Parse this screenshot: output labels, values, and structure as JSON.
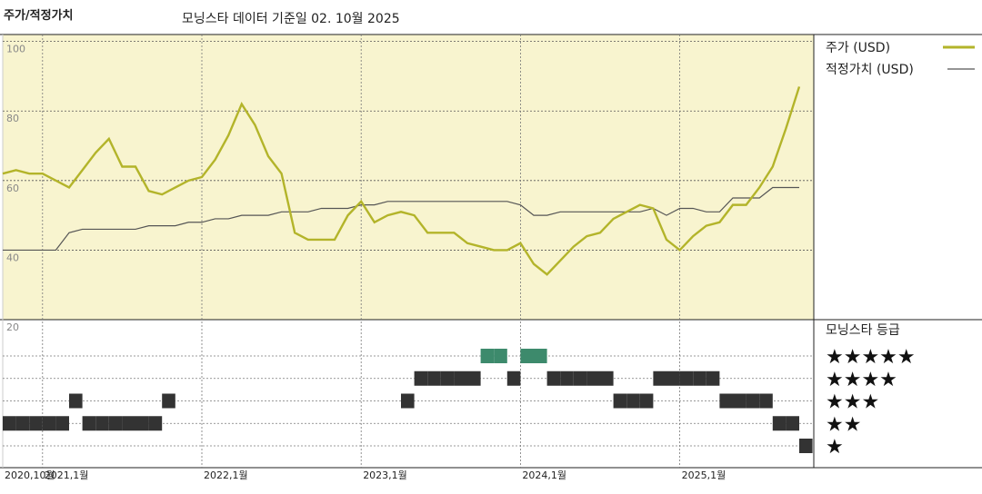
{
  "chart_data": {
    "type": "line",
    "title": "주가/적정가치",
    "subtitle": "모닝스타 데이터 기준일 02. 10월 2025",
    "x": [
      "2020-10",
      "2020-11",
      "2020-12",
      "2021-01",
      "2021-02",
      "2021-03",
      "2021-04",
      "2021-05",
      "2021-06",
      "2021-07",
      "2021-08",
      "2021-09",
      "2021-10",
      "2021-11",
      "2021-12",
      "2022-01",
      "2022-02",
      "2022-03",
      "2022-04",
      "2022-05",
      "2022-06",
      "2022-07",
      "2022-08",
      "2022-09",
      "2022-10",
      "2022-11",
      "2022-12",
      "2023-01",
      "2023-02",
      "2023-03",
      "2023-04",
      "2023-05",
      "2023-06",
      "2023-07",
      "2023-08",
      "2023-09",
      "2023-10",
      "2023-11",
      "2023-12",
      "2024-01",
      "2024-02",
      "2024-03",
      "2024-04",
      "2024-05",
      "2024-06",
      "2024-07",
      "2024-08",
      "2024-09",
      "2024-10",
      "2024-11",
      "2024-12",
      "2025-01",
      "2025-02",
      "2025-03",
      "2025-04",
      "2025-05",
      "2025-06",
      "2025-07",
      "2025-08",
      "2025-09",
      "2025-10"
    ],
    "series": [
      {
        "name": "주가 (USD)",
        "color": "#b3b42a",
        "values": [
          62,
          63,
          62,
          62,
          60,
          58,
          63,
          68,
          72,
          64,
          64,
          57,
          56,
          58,
          60,
          61,
          66,
          73,
          82,
          76,
          67,
          62,
          45,
          43,
          43,
          43,
          50,
          54,
          48,
          50,
          51,
          50,
          45,
          45,
          45,
          42,
          41,
          40,
          40,
          42,
          36,
          33,
          37,
          41,
          44,
          45,
          49,
          51,
          53,
          52,
          43,
          40,
          44,
          47,
          48,
          53,
          53,
          58,
          64,
          75,
          87
        ]
      },
      {
        "name": "적정가치 (USD)",
        "color": "#555555",
        "values": [
          40,
          40,
          40,
          40,
          40,
          45,
          46,
          46,
          46,
          46,
          46,
          47,
          47,
          47,
          48,
          48,
          49,
          49,
          50,
          50,
          50,
          51,
          51,
          51,
          52,
          52,
          52,
          53,
          53,
          54,
          54,
          54,
          54,
          54,
          54,
          54,
          54,
          54,
          54,
          53,
          50,
          50,
          51,
          51,
          51,
          51,
          51,
          51,
          51,
          52,
          50,
          52,
          52,
          51,
          51,
          55,
          55,
          55,
          58,
          58,
          58
        ]
      }
    ],
    "ylim": [
      20,
      102
    ],
    "yticks": [
      20,
      40,
      60,
      80,
      100
    ],
    "xticks": [
      {
        "value": "2020-10",
        "label": "2020,10월"
      },
      {
        "value": "2021-01",
        "label": "2021,1월"
      },
      {
        "value": "2022-01",
        "label": "2022,1월"
      },
      {
        "value": "2023-01",
        "label": "2023,1월"
      },
      {
        "value": "2024-01",
        "label": "2024,1월"
      },
      {
        "value": "2025-01",
        "label": "2025,1월"
      }
    ],
    "grid": true,
    "background": "#f8f4cf",
    "rating": {
      "title": "모닝스타 등급",
      "ticks": [
        {
          "value": 5,
          "label": "★★★★★"
        },
        {
          "value": 4,
          "label": "★★★★"
        },
        {
          "value": 3,
          "label": "★★★"
        },
        {
          "value": 2,
          "label": "★★"
        },
        {
          "value": 1,
          "label": "★"
        }
      ],
      "top_color": "#3d8a6c",
      "color": "#333333",
      "values": [
        2,
        2,
        2,
        2,
        2,
        3,
        2,
        2,
        2,
        2,
        2,
        2,
        3,
        null,
        null,
        null,
        null,
        null,
        null,
        null,
        null,
        null,
        null,
        null,
        null,
        null,
        null,
        null,
        null,
        null,
        3,
        4,
        4,
        4,
        4,
        4,
        5,
        5,
        4,
        5,
        5,
        4,
        4,
        4,
        4,
        4,
        3,
        3,
        3,
        4,
        4,
        4,
        4,
        4,
        3,
        3,
        3,
        3,
        2,
        2,
        1
      ]
    }
  }
}
